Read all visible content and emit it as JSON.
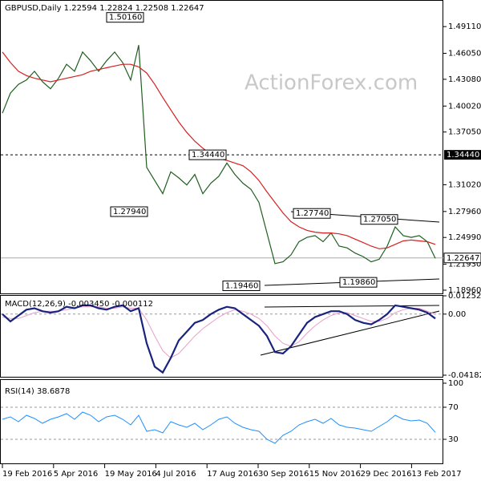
{
  "chart_data": [
    {
      "type": "line",
      "title": "GBPUSD,Daily  1.22594 1.22824 1.22508 1.22647",
      "watermark": "ActionForex.com",
      "ylim": [
        1.1859,
        1.5215
      ],
      "yticks": [
        {
          "value": 1.4911,
          "label": "1.49110"
        },
        {
          "value": 1.4605,
          "label": "1.46050"
        },
        {
          "value": 1.4308,
          "label": "1.43080"
        },
        {
          "value": 1.4002,
          "label": "1.40020"
        },
        {
          "value": 1.3705,
          "label": "1.37050"
        },
        {
          "value": 1.3102,
          "label": "1.31020"
        },
        {
          "value": 1.2796,
          "label": "1.27960"
        },
        {
          "value": 1.2499,
          "label": "1.24990"
        },
        {
          "value": 1.2193,
          "label": "1.21930"
        },
        {
          "value": 1.1896,
          "label": "1.18960"
        }
      ],
      "grid": false,
      "x_labels": [
        "19 Feb 2016",
        "5 Apr 2016",
        "19 May 2016",
        "4 Jul 2016",
        "17 Aug 2016",
        "30 Sep 2016",
        "15 Nov 2016",
        "29 Dec 2016",
        "13 Feb 2017"
      ],
      "level": {
        "value": 1.3444,
        "label": "1.34440"
      },
      "current": {
        "value": 1.22647,
        "label": "1.22647"
      },
      "annotations": [
        {
          "value": 1.5016,
          "label": "1.50160"
        },
        {
          "value": 1.2794,
          "label": "1.27940"
        },
        {
          "value": 1.3444,
          "label": "1.34440"
        },
        {
          "value": 1.2774,
          "label": "1.27740"
        },
        {
          "value": 1.2705,
          "label": "1.27050"
        },
        {
          "value": 1.1946,
          "label": "1.19460"
        },
        {
          "value": 1.1986,
          "label": "1.19860"
        }
      ],
      "series": [
        {
          "color": "#1f5f1f",
          "width": 1.2,
          "values": [
            1.392,
            1.415,
            1.425,
            1.43,
            1.44,
            1.428,
            1.42,
            1.432,
            1.448,
            1.44,
            1.462,
            1.452,
            1.44,
            1.452,
            1.462,
            1.45,
            1.43,
            1.47,
            1.33,
            1.315,
            1.3,
            1.325,
            1.318,
            1.31,
            1.322,
            1.3,
            1.312,
            1.32,
            1.335,
            1.322,
            1.312,
            1.305,
            1.29,
            1.255,
            1.22,
            1.222,
            1.23,
            1.245,
            1.25,
            1.252,
            1.245,
            1.255,
            1.24,
            1.238,
            1.232,
            1.228,
            1.222,
            1.225,
            1.24,
            1.262,
            1.252,
            1.25,
            1.252,
            1.245,
            1.226
          ]
        },
        {
          "color": "#d62020",
          "width": 1.2,
          "values": [
            1.462,
            1.45,
            1.44,
            1.435,
            1.432,
            1.43,
            1.428,
            1.43,
            1.432,
            1.434,
            1.436,
            1.44,
            1.442,
            1.444,
            1.446,
            1.448,
            1.448,
            1.445,
            1.438,
            1.425,
            1.41,
            1.396,
            1.382,
            1.37,
            1.36,
            1.352,
            1.345,
            1.34,
            1.338,
            1.335,
            1.332,
            1.325,
            1.315,
            1.302,
            1.29,
            1.278,
            1.268,
            1.262,
            1.258,
            1.256,
            1.255,
            1.255,
            1.254,
            1.252,
            1.248,
            1.244,
            1.24,
            1.237,
            1.238,
            1.242,
            1.246,
            1.247,
            1.246,
            1.245,
            1.242
          ]
        }
      ]
    },
    {
      "type": "line",
      "title": "MACD(12,26,9) -0.003450 -0.000112",
      "ylim": [
        -0.041823,
        0.012522
      ],
      "yticks": [
        {
          "value": 0.012522,
          "label": "0.012522"
        },
        {
          "value": 0,
          "label": "0.00"
        },
        {
          "value": -0.041823,
          "label": "-0.041823"
        }
      ],
      "grid": true,
      "series": [
        {
          "color": "#e8a0c8",
          "width": 1,
          "values": [
            -0.002,
            -0.003,
            -0.003,
            -0.001,
            0.001,
            0.002,
            0.002,
            0.002,
            0.003,
            0.004,
            0.005,
            0.005,
            0.005,
            0.004,
            0.004,
            0.005,
            0.004,
            0.004,
            -0.004,
            -0.015,
            -0.025,
            -0.03,
            -0.027,
            -0.021,
            -0.015,
            -0.01,
            -0.006,
            -0.002,
            0.001,
            0.003,
            0.002,
            0,
            -0.003,
            -0.008,
            -0.015,
            -0.02,
            -0.022,
            -0.019,
            -0.013,
            -0.008,
            -0.004,
            -0.001,
            0.001,
            0.001,
            -0.001,
            -0.003,
            -0.005,
            -0.005,
            -0.003,
            0.001,
            0.003,
            0.004,
            0.004,
            0.002,
            0
          ]
        },
        {
          "color": "#1a237e",
          "width": 2.2,
          "values": [
            0,
            -0.005,
            -0.001,
            0.003,
            0.004,
            0.002,
            0.001,
            0.002,
            0.005,
            0.004,
            0.006,
            0.006,
            0.004,
            0.003,
            0.005,
            0.006,
            0.002,
            0.004,
            -0.02,
            -0.036,
            -0.04,
            -0.03,
            -0.018,
            -0.012,
            -0.006,
            -0.004,
            0,
            0.003,
            0.005,
            0.004,
            0,
            -0.004,
            -0.008,
            -0.015,
            -0.026,
            -0.027,
            -0.022,
            -0.014,
            -0.006,
            -0.002,
            0,
            0.002,
            0.002,
            0,
            -0.004,
            -0.006,
            -0.007,
            -0.004,
            0,
            0.006,
            0.005,
            0.004,
            0.003,
            0.001,
            -0.003
          ]
        }
      ]
    },
    {
      "type": "line",
      "title": "RSI(14) 38.6878",
      "ylim": [
        0,
        100
      ],
      "yticks": [
        100,
        70,
        30
      ],
      "grid": true,
      "series": [
        {
          "color": "#1e90ff",
          "width": 1,
          "values": [
            55,
            58,
            52,
            60,
            56,
            50,
            55,
            58,
            62,
            55,
            64,
            60,
            52,
            58,
            60,
            55,
            48,
            60,
            40,
            42,
            38,
            52,
            48,
            45,
            50,
            42,
            48,
            55,
            58,
            50,
            45,
            42,
            40,
            30,
            25,
            35,
            40,
            48,
            52,
            55,
            50,
            56,
            48,
            45,
            44,
            42,
            40,
            46,
            52,
            60,
            55,
            53,
            54,
            50,
            38.7
          ]
        }
      ]
    }
  ]
}
